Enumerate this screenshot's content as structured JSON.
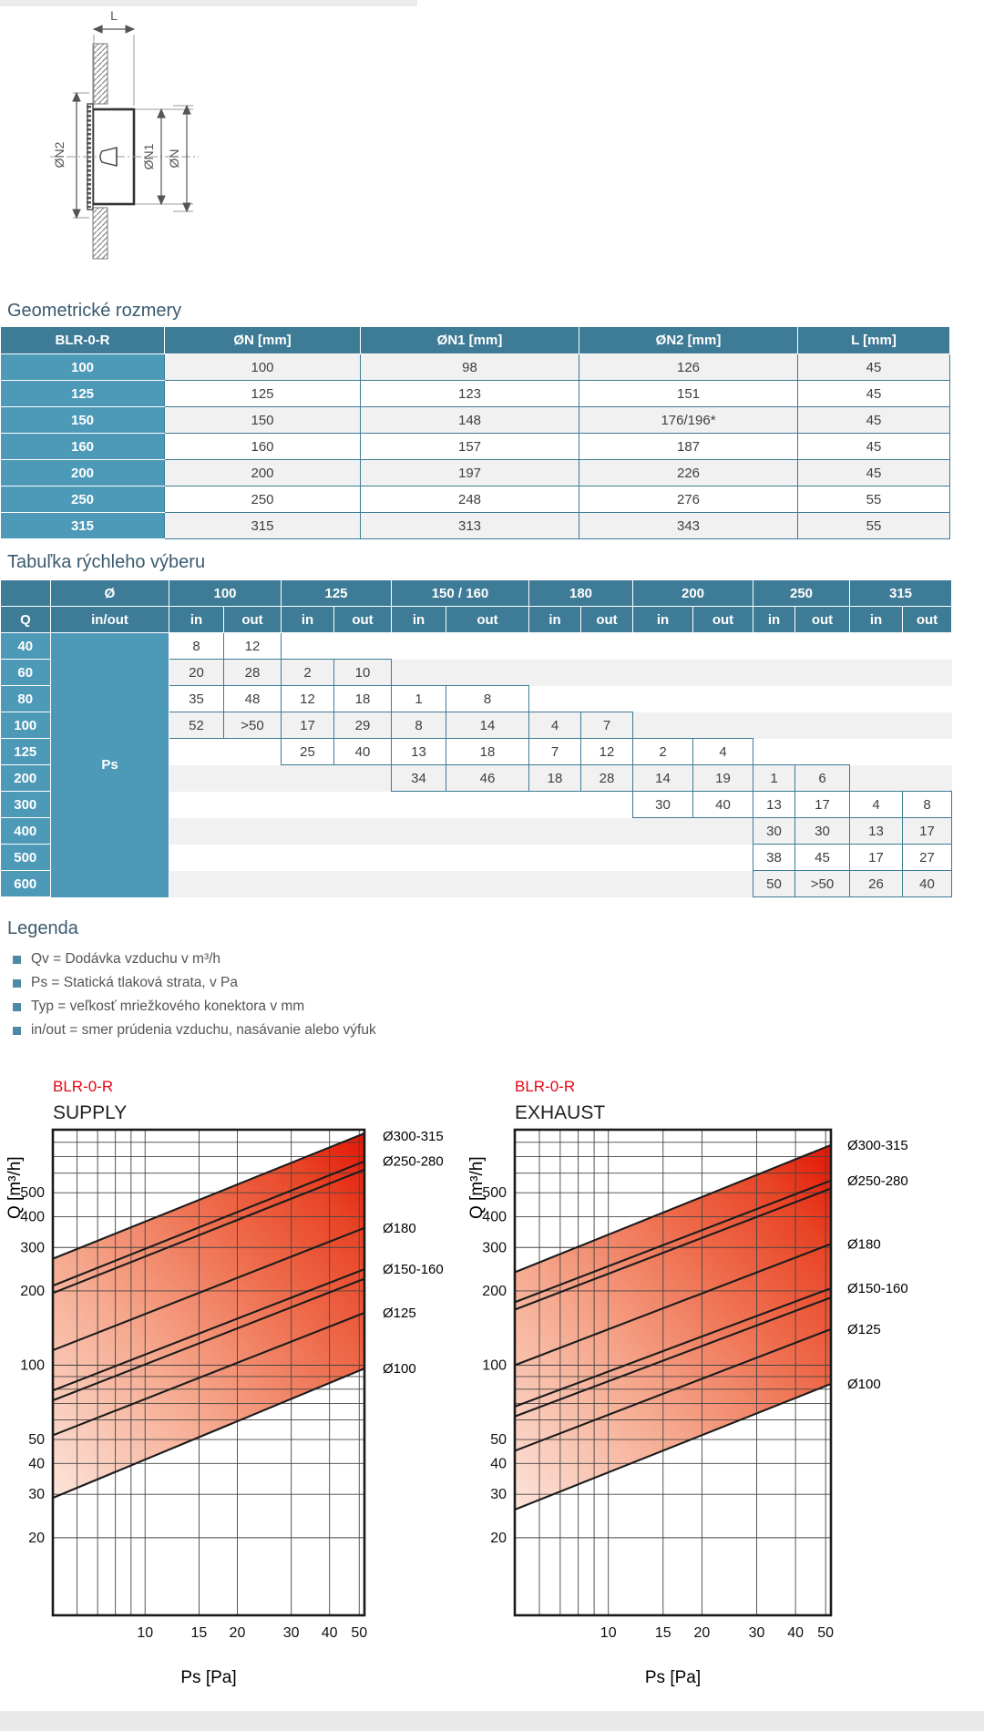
{
  "drawing": {
    "labels": {
      "l": "L",
      "n2": "ØN2",
      "n1": "ØN1",
      "n": "ØN"
    }
  },
  "geometry": {
    "title": "Geometrické rozmery",
    "headers": [
      "BLR-0-R",
      "ØN [mm]",
      "ØN1 [mm]",
      "ØN2 [mm]",
      "L [mm]"
    ],
    "rows": [
      [
        "100",
        "100",
        "98",
        "126",
        "45"
      ],
      [
        "125",
        "125",
        "123",
        "151",
        "45"
      ],
      [
        "150",
        "150",
        "148",
        "176/196*",
        "45"
      ],
      [
        "160",
        "160",
        "157",
        "187",
        "45"
      ],
      [
        "200",
        "200",
        "197",
        "226",
        "45"
      ],
      [
        "250",
        "250",
        "248",
        "276",
        "55"
      ],
      [
        "315",
        "315",
        "313",
        "343",
        "55"
      ]
    ]
  },
  "quick": {
    "title": "Tabuľka rýchleho výberu",
    "q_header": "Q",
    "dia_header": "Ø",
    "inout_header": "in/out",
    "in_label": "in",
    "out_label": "out",
    "ps_label": "Ps",
    "groups": [
      "100",
      "125",
      "150 / 160",
      "180",
      "200",
      "250",
      "315"
    ],
    "rows": [
      {
        "q": "40",
        "cells": [
          8,
          12,
          null,
          null,
          null,
          null,
          null,
          null,
          null,
          null,
          null,
          null,
          null,
          null
        ]
      },
      {
        "q": "60",
        "cells": [
          20,
          28,
          2,
          10,
          null,
          null,
          null,
          null,
          null,
          null,
          null,
          null,
          null,
          null
        ]
      },
      {
        "q": "80",
        "cells": [
          35,
          48,
          12,
          18,
          1,
          8,
          null,
          null,
          null,
          null,
          null,
          null,
          null,
          null
        ]
      },
      {
        "q": "100",
        "cells": [
          52,
          ">50",
          17,
          29,
          8,
          14,
          4,
          7,
          null,
          null,
          null,
          null,
          null,
          null
        ]
      },
      {
        "q": "125",
        "cells": [
          null,
          null,
          25,
          40,
          13,
          18,
          7,
          12,
          2,
          4,
          null,
          null,
          null,
          null
        ]
      },
      {
        "q": "200",
        "cells": [
          null,
          null,
          null,
          null,
          34,
          46,
          18,
          28,
          14,
          19,
          1,
          6,
          null,
          null
        ]
      },
      {
        "q": "300",
        "cells": [
          null,
          null,
          null,
          null,
          null,
          null,
          null,
          null,
          30,
          40,
          13,
          17,
          4,
          8
        ]
      },
      {
        "q": "400",
        "cells": [
          null,
          null,
          null,
          null,
          null,
          null,
          null,
          null,
          null,
          null,
          30,
          30,
          13,
          17
        ]
      },
      {
        "q": "500",
        "cells": [
          null,
          null,
          null,
          null,
          null,
          null,
          null,
          null,
          null,
          null,
          38,
          45,
          17,
          27
        ]
      },
      {
        "q": "600",
        "cells": [
          null,
          null,
          null,
          null,
          null,
          null,
          null,
          null,
          null,
          null,
          50,
          ">50",
          26,
          40
        ]
      }
    ]
  },
  "legend": {
    "title": "Legenda",
    "items": [
      "Qv = Dodávka vzduchu v m³/h",
      "Ps = Statická tlaková strata, v Pa",
      "Typ = veľkosť mriežkového konektora v mm",
      "in/out = smer prúdenia vzduchu, nasávanie alebo výfuk"
    ]
  },
  "chart_data": [
    {
      "type": "line",
      "title": "BLR-0-R",
      "subtitle": "SUPPLY",
      "xlabel": "Ps [Pa]",
      "ylabel": "Q [m³/h]",
      "xlim": [
        5,
        52
      ],
      "ylim": [
        9.7,
        900
      ],
      "x_ticks": [
        10,
        15,
        20,
        30,
        40,
        50
      ],
      "y_ticks": [
        20,
        30,
        40,
        50,
        100,
        200,
        300,
        400,
        500
      ],
      "x_grid": [
        6,
        7,
        8,
        9,
        10,
        15,
        20,
        30,
        40,
        50
      ],
      "y_grid": [
        20,
        30,
        40,
        50,
        60,
        70,
        80,
        90,
        100,
        200,
        300,
        400,
        500,
        600,
        700,
        800
      ],
      "grid": true,
      "legend_position": "right",
      "series": [
        {
          "label": "Ø300-315",
          "lines": [
            [
              [
                5,
                270
              ],
              [
                52,
                870
              ]
            ]
          ]
        },
        {
          "label": "Ø250-280",
          "lines": [
            [
              [
                5,
                210
              ],
              [
                52,
                670
              ]
            ],
            [
              [
                5,
                196
              ],
              [
                52,
                620
              ]
            ]
          ]
        },
        {
          "label": "Ø180",
          "lines": [
            [
              [
                5,
                115
              ],
              [
                52,
                360
              ]
            ]
          ]
        },
        {
          "label": "Ø150-160",
          "lines": [
            [
              [
                5,
                79
              ],
              [
                52,
                245
              ]
            ],
            [
              [
                5,
                72
              ],
              [
                52,
                224
              ]
            ]
          ]
        },
        {
          "label": "Ø125",
          "lines": [
            [
              [
                5,
                52
              ],
              [
                52,
                163
              ]
            ]
          ]
        },
        {
          "label": "Ø100",
          "lines": [
            [
              [
                5,
                29
              ],
              [
                52,
                97
              ]
            ]
          ]
        }
      ]
    },
    {
      "type": "line",
      "title": "BLR-0-R",
      "subtitle": "EXHAUST",
      "xlabel": "Ps [Pa]",
      "ylabel": "Q [m³/h]",
      "xlim": [
        5,
        52
      ],
      "ylim": [
        9.7,
        900
      ],
      "x_ticks": [
        10,
        15,
        20,
        30,
        40,
        50
      ],
      "y_ticks": [
        20,
        30,
        40,
        50,
        100,
        200,
        300,
        400,
        500
      ],
      "x_grid": [
        6,
        7,
        8,
        9,
        10,
        15,
        20,
        30,
        40,
        50
      ],
      "y_grid": [
        20,
        30,
        40,
        50,
        60,
        70,
        80,
        90,
        100,
        200,
        300,
        400,
        500,
        600,
        700,
        800
      ],
      "grid": true,
      "legend_position": "right",
      "series": [
        {
          "label": "Ø300-315",
          "lines": [
            [
              [
                5,
                238
              ],
              [
                52,
                780
              ]
            ]
          ]
        },
        {
          "label": "Ø250-280",
          "lines": [
            [
              [
                5,
                180
              ],
              [
                52,
                560
              ]
            ],
            [
              [
                5,
                168
              ],
              [
                52,
                520
              ]
            ]
          ]
        },
        {
          "label": "Ø180",
          "lines": [
            [
              [
                5,
                100
              ],
              [
                52,
                310
              ]
            ]
          ]
        },
        {
          "label": "Ø150-160",
          "lines": [
            [
              [
                5,
                68
              ],
              [
                52,
                205
              ]
            ],
            [
              [
                5,
                62
              ],
              [
                52,
                188
              ]
            ]
          ]
        },
        {
          "label": "Ø125",
          "lines": [
            [
              [
                5,
                45
              ],
              [
                52,
                140
              ]
            ]
          ]
        },
        {
          "label": "Ø100",
          "lines": [
            [
              [
                5,
                26
              ],
              [
                52,
                84
              ]
            ]
          ]
        }
      ]
    }
  ],
  "colors": {
    "header_teal": "#3e7b96",
    "row_teal": "#4d9ab8",
    "row_alt": "#f1f1f1",
    "title_text": "#3a5a6e",
    "red_title": "#e30613",
    "band_light": "#fce4da",
    "band_dark": "#e31405"
  }
}
